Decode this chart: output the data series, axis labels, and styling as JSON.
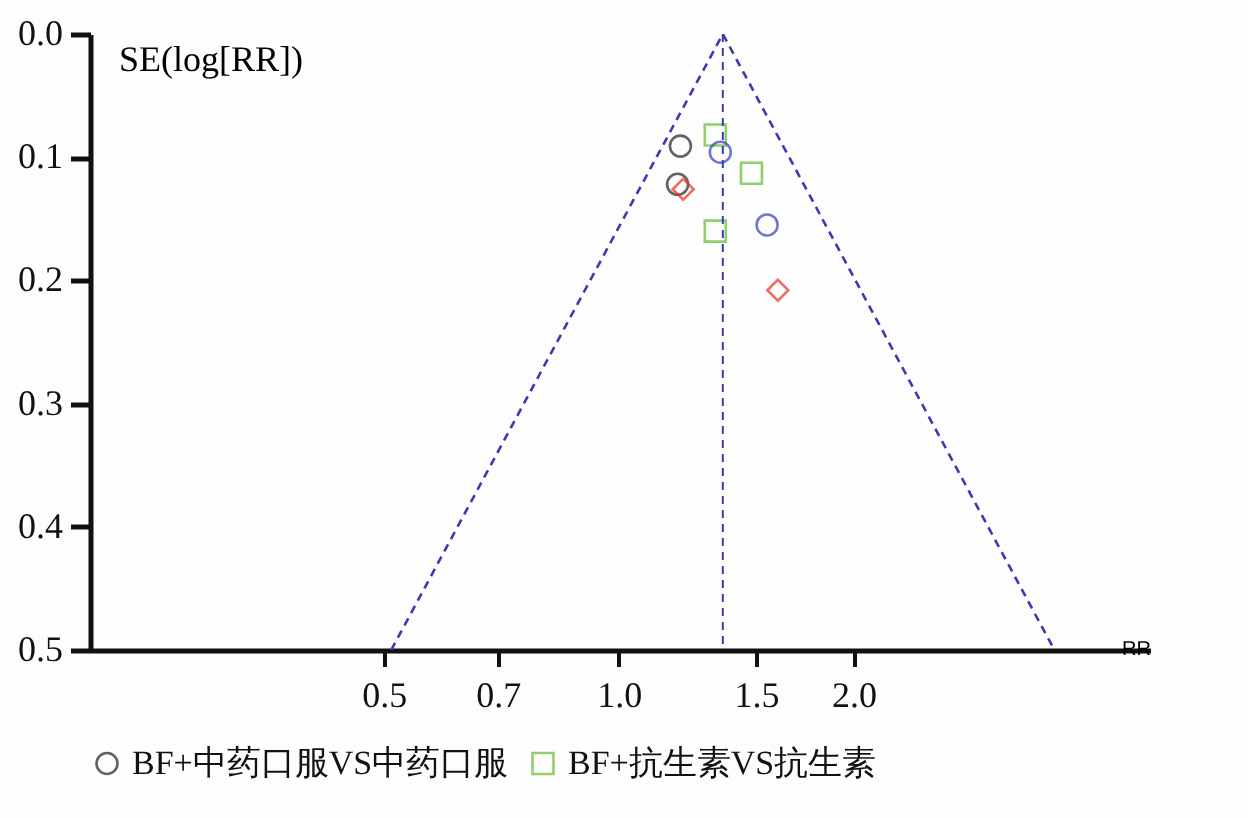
{
  "chart_data": {
    "type": "scatter",
    "xlabel": "RR",
    "ylabel": "SE(log[RR])",
    "log": "x",
    "legend": "bottom",
    "xlim": [
      0.21,
      4.8
    ],
    "xticks": [
      0.5,
      0.7,
      {
        "value": 1,
        "label": "1.0"
      },
      1.5,
      {
        "value": 2,
        "label": "2.0"
      }
    ],
    "ylim": [
      0.5,
      0
    ],
    "yticks": [
      {
        "value": 0,
        "label": "0.0"
      },
      0.1,
      0.2,
      0.3,
      0.4,
      0.5
    ],
    "ref_lines": [
      {
        "axis": "x",
        "value": 1.36,
        "color": "#3b3bb0",
        "line_style": "dashed"
      }
    ],
    "series": [
      {
        "name": "BF+中药口服VS中药口服",
        "color": "#222222",
        "marker": "circle",
        "x": [
          1.2,
          1.19
        ],
        "values": [
          0.091,
          0.122
        ]
      },
      {
        "name": "BF+抗生素VS抗生素",
        "color": "#66bb33",
        "marker": "square",
        "x": [
          1.33,
          1.48,
          1.33
        ],
        "values": [
          0.082,
          0.113,
          0.16
        ]
      },
      {
        "color": "#3344bb",
        "marker": "circle",
        "x": [
          1.35,
          1.55
        ],
        "values": [
          0.096,
          0.155
        ]
      },
      {
        "color": "#e53322",
        "marker": "diamond",
        "x": [
          1.21,
          1.6
        ],
        "values": [
          0.126,
          0.208
        ]
      },
      {
        "type": "line",
        "color": "#3b3bb0",
        "line_style": "dashed",
        "marker": "none",
        "x": [
          0.511,
          1.36,
          3.62
        ],
        "values": [
          0.5,
          0,
          0.5
        ]
      }
    ]
  }
}
